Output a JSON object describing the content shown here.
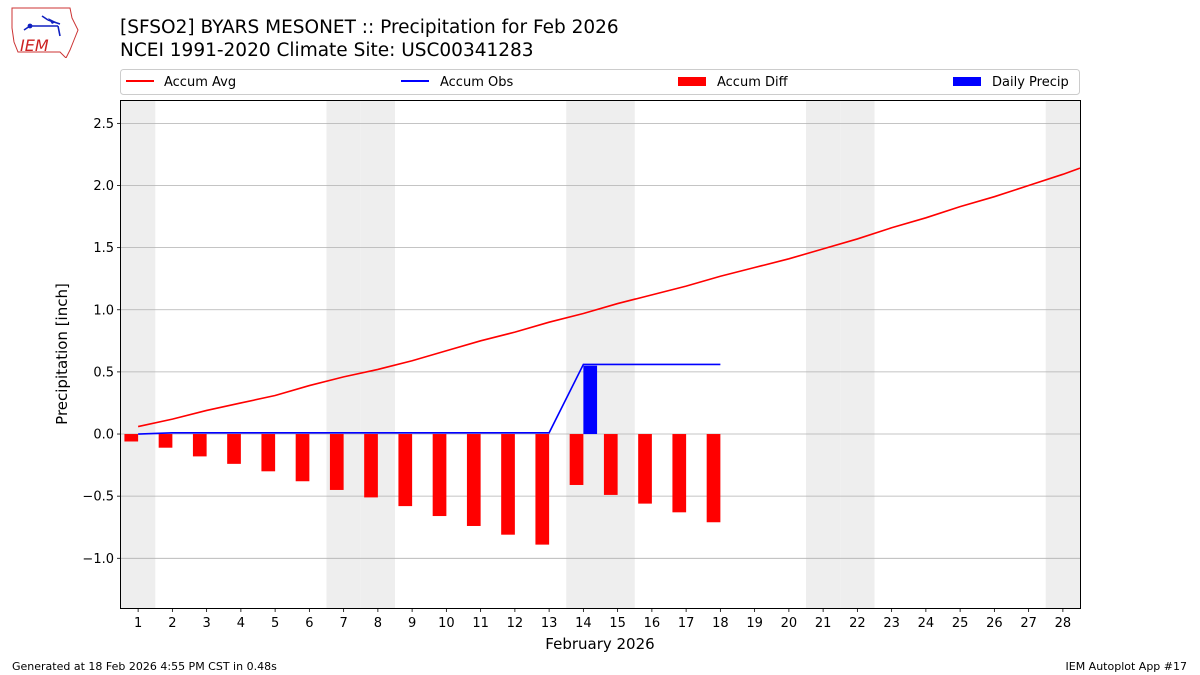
{
  "header": {
    "title_line1": "[SFSO2] BYARS MESONET :: Precipitation for Feb 2026",
    "title_line2": "NCEI 1991-2020 Climate Site: USC00341283",
    "logo_text": "IEM"
  },
  "footer": {
    "left": "Generated at 18 Feb 2026 4:55 PM CST in 0.48s",
    "right": "IEM Autoplot App #17"
  },
  "colors": {
    "avg": "#ff0000",
    "obs": "#0000ff",
    "diff": "#ff0000",
    "daily": "#0000ff",
    "weekend": "#eeeeee",
    "grid": "#b0b0b0"
  },
  "chart_data": {
    "type": "bar+line",
    "xlabel": "February 2026",
    "ylabel": "Precipitation [inch]",
    "xlim": [
      0.5,
      28.5
    ],
    "ylim": [
      -1.4,
      2.68
    ],
    "yticks": [
      -1.0,
      -0.5,
      0.0,
      0.5,
      1.0,
      1.5,
      2.0,
      2.5
    ],
    "ytick_labels": [
      "−1.0",
      "−0.5",
      "0.0",
      "0.5",
      "1.0",
      "1.5",
      "2.0",
      "2.5"
    ],
    "days": [
      1,
      2,
      3,
      4,
      5,
      6,
      7,
      8,
      9,
      10,
      11,
      12,
      13,
      14,
      15,
      16,
      17,
      18,
      19,
      20,
      21,
      22,
      23,
      24,
      25,
      26,
      27,
      28
    ],
    "weekend_days": [
      1,
      7,
      8,
      14,
      15,
      21,
      22,
      28
    ],
    "legend": {
      "accum_avg": "Accum Avg",
      "accum_obs": "Accum Obs",
      "accum_diff": "Accum Diff",
      "daily_precip": "Daily Precip"
    },
    "series": [
      {
        "name": "Accum Avg",
        "kind": "line",
        "x": [
          1,
          2,
          3,
          4,
          5,
          6,
          7,
          8,
          9,
          10,
          11,
          12,
          13,
          14,
          15,
          16,
          17,
          18,
          19,
          20,
          21,
          22,
          23,
          24,
          25,
          26,
          27,
          28,
          28.5
        ],
        "values": [
          0.06,
          0.12,
          0.19,
          0.25,
          0.31,
          0.39,
          0.46,
          0.52,
          0.59,
          0.67,
          0.75,
          0.82,
          0.9,
          0.97,
          1.05,
          1.12,
          1.19,
          1.27,
          1.34,
          1.41,
          1.49,
          1.57,
          1.66,
          1.74,
          1.83,
          1.91,
          2.0,
          2.09,
          2.14
        ]
      },
      {
        "name": "Accum Obs",
        "kind": "line",
        "x": [
          1,
          2,
          3,
          4,
          5,
          6,
          7,
          8,
          9,
          10,
          11,
          12,
          13,
          14,
          15,
          16,
          17,
          18
        ],
        "values": [
          0.0,
          0.01,
          0.01,
          0.01,
          0.01,
          0.01,
          0.01,
          0.01,
          0.01,
          0.01,
          0.01,
          0.01,
          0.01,
          0.56,
          0.56,
          0.56,
          0.56,
          0.56
        ]
      },
      {
        "name": "Accum Diff",
        "kind": "bar",
        "x": [
          1,
          2,
          3,
          4,
          5,
          6,
          7,
          8,
          9,
          10,
          11,
          12,
          13,
          14,
          15,
          16,
          17,
          18
        ],
        "values": [
          -0.06,
          -0.11,
          -0.18,
          -0.24,
          -0.3,
          -0.38,
          -0.45,
          -0.51,
          -0.58,
          -0.66,
          -0.74,
          -0.81,
          -0.89,
          -0.41,
          -0.49,
          -0.56,
          -0.63,
          -0.71
        ]
      },
      {
        "name": "Daily Precip",
        "kind": "bar",
        "x": [
          14
        ],
        "values": [
          0.55
        ]
      }
    ]
  }
}
